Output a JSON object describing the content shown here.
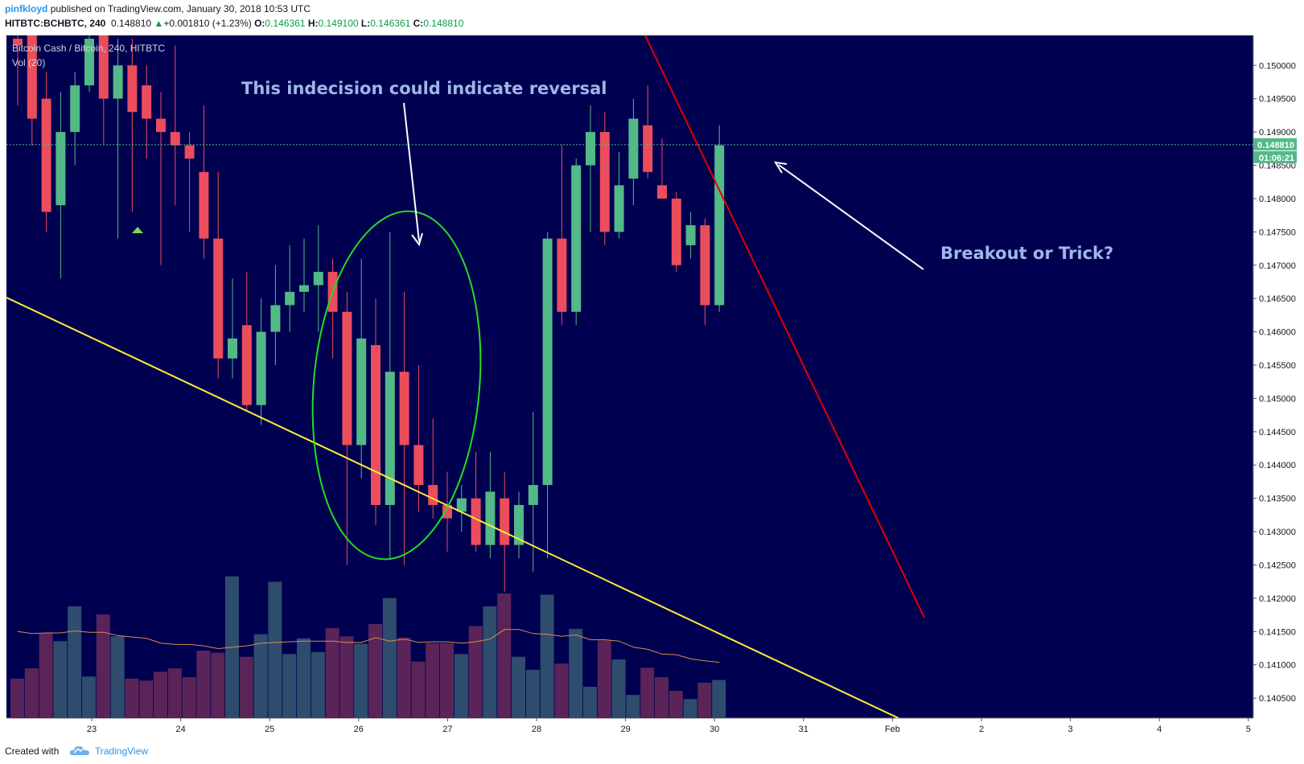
{
  "header": {
    "author": "pinfkloyd",
    "published": "published on TradingView.com, January 30, 2018 10:53 UTC",
    "symbol": "HITBTC:BCHBTC, 240",
    "last": "0.148810",
    "change": "+0.001810 (+1.23%)",
    "o_label": "O:",
    "o_value": "0.146361",
    "h_label": "H:",
    "h_value": "0.149100",
    "l_label": "L:",
    "l_value": "0.146361",
    "c_label": "C:",
    "c_value": "0.148810"
  },
  "legend": {
    "title": "Bitcoin Cash / Bitcoin, 240, HITBTC",
    "volume": "Vol (20)"
  },
  "footer": {
    "created": "Created with",
    "brand": "TradingView"
  },
  "colors": {
    "background": "#000050",
    "up": "#53b987",
    "down": "#eb4d5c",
    "vol_up": "#2e4d6e",
    "vol_down": "#5b2458",
    "yellow_line": "#ffeb3b",
    "red_line": "#e00000",
    "ellipse": "#22dd22",
    "annotation": "#9fb6e8"
  },
  "chart_data": {
    "type": "candlestick",
    "interval": "4h",
    "x_start": "2018-01-22T12:00",
    "ylim": [
      0.1402,
      0.15045
    ],
    "x_ticks": [
      "23",
      "24",
      "25",
      "26",
      "27",
      "28",
      "29",
      "30",
      "31",
      "Feb",
      "2",
      "3",
      "4",
      "5"
    ],
    "y_ticks": [
      "0.140500",
      "0.141000",
      "0.141500",
      "0.142000",
      "0.142500",
      "0.143000",
      "0.143500",
      "0.144000",
      "0.144500",
      "0.145000",
      "0.145500",
      "0.146000",
      "0.146500",
      "0.147000",
      "0.147500",
      "0.148000",
      "0.148500",
      "0.149000",
      "0.149500",
      "0.150000"
    ],
    "last_price_label": "0.148810",
    "countdown_label": "01:06:21",
    "candles": [
      {
        "o": 0.1504,
        "h": 0.1506,
        "l": 0.1494,
        "c": 0.1503
      },
      {
        "o": 0.1505,
        "h": 0.1506,
        "l": 0.1488,
        "c": 0.1492
      },
      {
        "o": 0.1495,
        "h": 0.1499,
        "l": 0.1475,
        "c": 0.1478
      },
      {
        "o": 0.1479,
        "h": 0.1496,
        "l": 0.1468,
        "c": 0.149
      },
      {
        "o": 0.149,
        "h": 0.1499,
        "l": 0.1485,
        "c": 0.1497
      },
      {
        "o": 0.1497,
        "h": 0.1506,
        "l": 0.1496,
        "c": 0.1504
      },
      {
        "o": 0.1505,
        "h": 0.1506,
        "l": 0.1488,
        "c": 0.1495
      },
      {
        "o": 0.1495,
        "h": 0.1504,
        "l": 0.1474,
        "c": 0.15
      },
      {
        "o": 0.15,
        "h": 0.1504,
        "l": 0.1478,
        "c": 0.1493
      },
      {
        "o": 0.1497,
        "h": 0.15,
        "l": 0.1486,
        "c": 0.1492
      },
      {
        "o": 0.1492,
        "h": 0.1496,
        "l": 0.147,
        "c": 0.149
      },
      {
        "o": 0.149,
        "h": 0.1503,
        "l": 0.1479,
        "c": 0.1488
      },
      {
        "o": 0.1488,
        "h": 0.149,
        "l": 0.1475,
        "c": 0.1486
      },
      {
        "o": 0.1484,
        "h": 0.1494,
        "l": 0.1471,
        "c": 0.1474
      },
      {
        "o": 0.1474,
        "h": 0.1484,
        "l": 0.1453,
        "c": 0.1456
      },
      {
        "o": 0.1456,
        "h": 0.1468,
        "l": 0.1453,
        "c": 0.1459
      },
      {
        "o": 0.1461,
        "h": 0.1469,
        "l": 0.1448,
        "c": 0.1449
      },
      {
        "o": 0.1449,
        "h": 0.1465,
        "l": 0.1446,
        "c": 0.146
      },
      {
        "o": 0.146,
        "h": 0.147,
        "l": 0.1455,
        "c": 0.1464
      },
      {
        "o": 0.1464,
        "h": 0.1473,
        "l": 0.146,
        "c": 0.1466
      },
      {
        "o": 0.1466,
        "h": 0.1474,
        "l": 0.1463,
        "c": 0.1467
      },
      {
        "o": 0.1467,
        "h": 0.1476,
        "l": 0.146,
        "c": 0.1469
      },
      {
        "o": 0.1469,
        "h": 0.1471,
        "l": 0.1456,
        "c": 0.1463
      },
      {
        "o": 0.1463,
        "h": 0.1466,
        "l": 0.1425,
        "c": 0.1443
      },
      {
        "o": 0.1443,
        "h": 0.1471,
        "l": 0.1438,
        "c": 0.1459
      },
      {
        "o": 0.1458,
        "h": 0.1465,
        "l": 0.1431,
        "c": 0.1434
      },
      {
        "o": 0.1434,
        "h": 0.1475,
        "l": 0.1426,
        "c": 0.1454
      },
      {
        "o": 0.1454,
        "h": 0.1466,
        "l": 0.1425,
        "c": 0.1443
      },
      {
        "o": 0.1443,
        "h": 0.1455,
        "l": 0.1433,
        "c": 0.1437
      },
      {
        "o": 0.1437,
        "h": 0.1447,
        "l": 0.1432,
        "c": 0.1434
      },
      {
        "o": 0.1434,
        "h": 0.1439,
        "l": 0.1427,
        "c": 0.1432
      },
      {
        "o": 0.1433,
        "h": 0.1437,
        "l": 0.143,
        "c": 0.1435
      },
      {
        "o": 0.1435,
        "h": 0.1442,
        "l": 0.1427,
        "c": 0.1428
      },
      {
        "o": 0.1428,
        "h": 0.1442,
        "l": 0.1426,
        "c": 0.1436
      },
      {
        "o": 0.1435,
        "h": 0.1439,
        "l": 0.1421,
        "c": 0.1428
      },
      {
        "o": 0.1428,
        "h": 0.1436,
        "l": 0.1426,
        "c": 0.1434
      },
      {
        "o": 0.1434,
        "h": 0.1448,
        "l": 0.1424,
        "c": 0.1437
      },
      {
        "o": 0.1437,
        "h": 0.1475,
        "l": 0.1426,
        "c": 0.1474
      },
      {
        "o": 0.1474,
        "h": 0.1488,
        "l": 0.1461,
        "c": 0.1463
      },
      {
        "o": 0.1463,
        "h": 0.1486,
        "l": 0.1461,
        "c": 0.1485
      },
      {
        "o": 0.1485,
        "h": 0.1494,
        "l": 0.1475,
        "c": 0.149
      },
      {
        "o": 0.149,
        "h": 0.1493,
        "l": 0.1473,
        "c": 0.1475
      },
      {
        "o": 0.1475,
        "h": 0.1487,
        "l": 0.1474,
        "c": 0.1482
      },
      {
        "o": 0.1483,
        "h": 0.1495,
        "l": 0.1479,
        "c": 0.1492
      },
      {
        "o": 0.1491,
        "h": 0.1497,
        "l": 0.1483,
        "c": 0.1484
      },
      {
        "o": 0.1482,
        "h": 0.1489,
        "l": 0.148,
        "c": 0.148
      },
      {
        "o": 0.148,
        "h": 0.1481,
        "l": 0.1469,
        "c": 0.147
      },
      {
        "o": 0.1473,
        "h": 0.1478,
        "l": 0.1471,
        "c": 0.1476
      },
      {
        "o": 0.1476,
        "h": 0.1477,
        "l": 0.1461,
        "c": 0.1464
      },
      {
        "o": 0.1464,
        "h": 0.1491,
        "l": 0.1463,
        "c": 0.1488
      }
    ],
    "volume": {
      "axis_max": 25,
      "values": [
        5.8,
        7.3,
        12.5,
        11.3,
        16.4,
        6.1,
        15.2,
        12.0,
        5.8,
        5.5,
        6.8,
        7.3,
        6.0,
        9.9,
        9.6,
        20.8,
        9.0,
        12.3,
        20.0,
        9.4,
        11.7,
        9.7,
        13.2,
        12.0,
        10.9,
        13.8,
        17.6,
        11.8,
        8.3,
        11.0,
        11.0,
        9.4,
        13.5,
        16.4,
        18.3,
        9.0,
        7.1,
        18.1,
        8.0,
        13.1,
        4.6,
        11.4,
        8.6,
        3.4,
        7.4,
        6.0,
        4.0,
        2.8,
        5.2,
        5.6
      ],
      "ma": [
        12.7,
        12.4,
        12.5,
        12.5,
        12.8,
        12.6,
        12.6,
        12.1,
        11.9,
        11.7,
        11.0,
        10.8,
        10.8,
        10.6,
        10.2,
        10.4,
        10.6,
        11.0,
        11.1,
        11.2,
        11.3,
        11.3,
        11.3,
        11.1,
        11.1,
        11.8,
        11.3,
        11.6,
        11.1,
        11.2,
        11.2,
        11.0,
        11.2,
        11.6,
        13.0,
        13.0,
        12.4,
        12.3,
        12.0,
        12.2,
        11.5,
        11.5,
        11.3,
        10.4,
        10.1,
        9.4,
        9.3,
        8.7,
        8.4,
        8.2
      ]
    },
    "annotations": [
      {
        "text": "This indecision could indicate reversal"
      },
      {
        "text": "Breakout or Trick?"
      }
    ],
    "drawings": [
      {
        "type": "trendline",
        "color": "yellow"
      },
      {
        "type": "trendline",
        "color": "red"
      },
      {
        "type": "ellipse",
        "color": "green"
      },
      {
        "type": "arrow",
        "color": "white"
      },
      {
        "type": "arrow",
        "color": "white"
      }
    ]
  }
}
